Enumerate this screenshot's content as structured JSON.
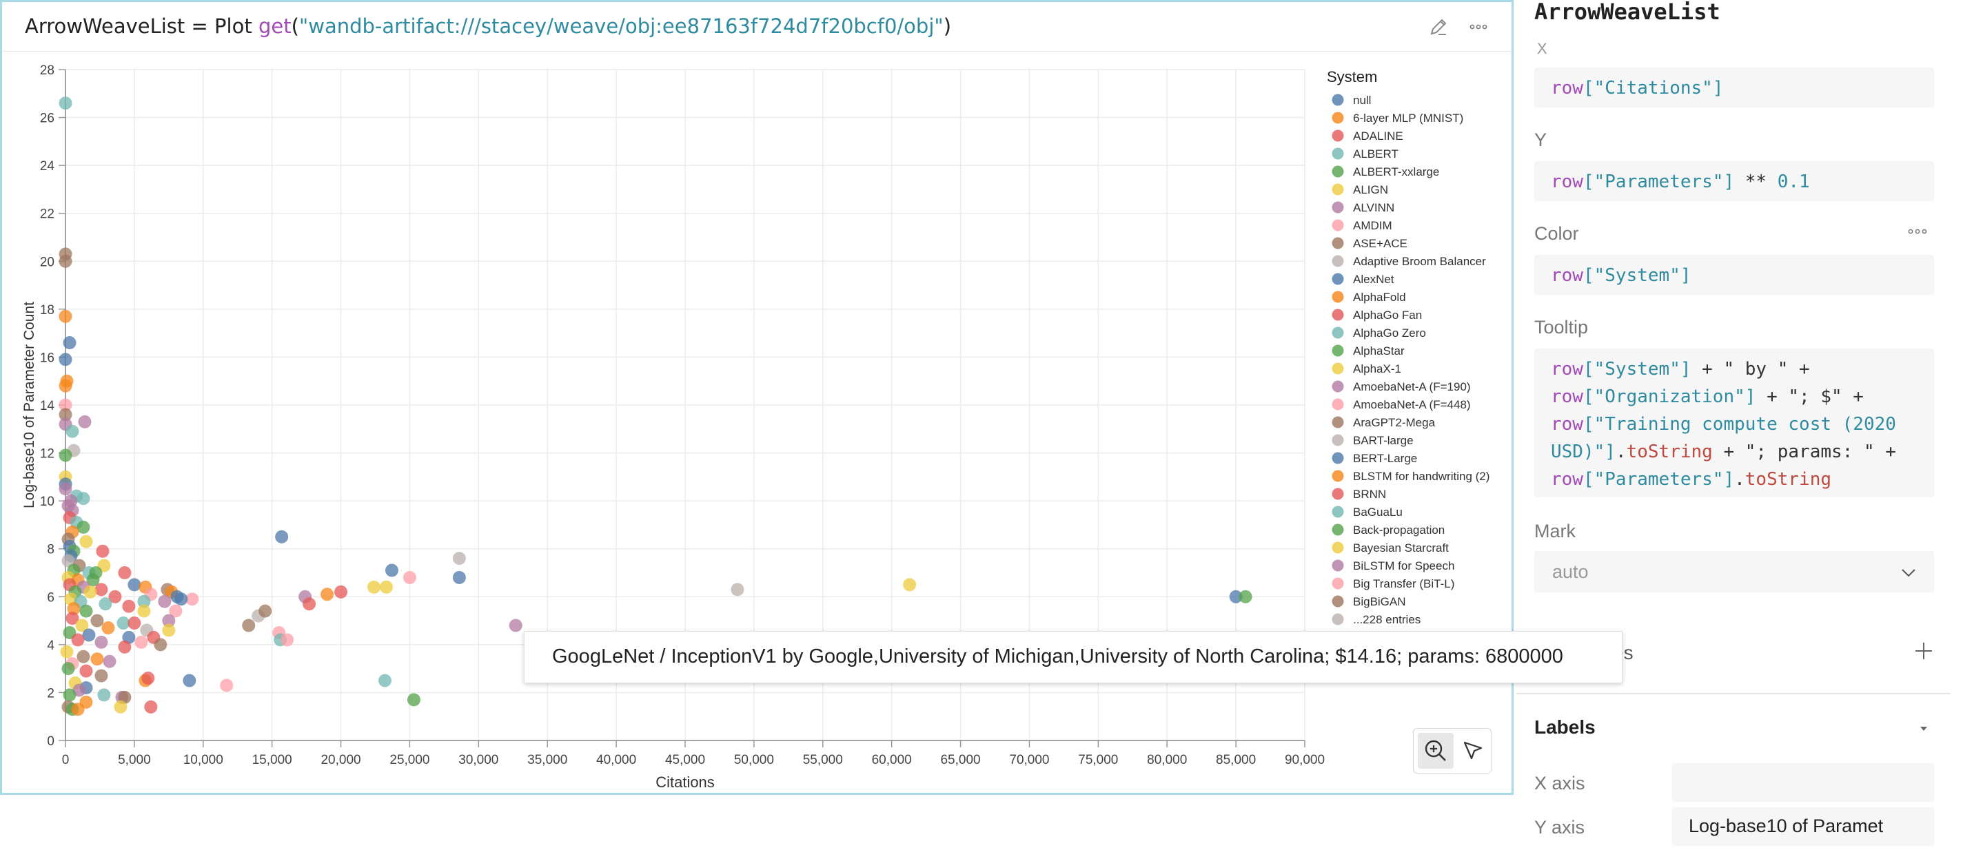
{
  "panel": {
    "var_name": "ArrowWeaveList",
    "equals": "=",
    "op_plot": "Plot",
    "fn_get": "get",
    "artifact_uri": "\"wandb-artifact:///stacey/weave/obj:ee87163f724d7f20bcf0/obj\"",
    "open_paren": "(",
    "close_paren": ")"
  },
  "chart_data": {
    "type": "scatter",
    "xlabel": "Citations",
    "ylabel": "Log-base10 of Parameter Count",
    "xlim": [
      0,
      90000
    ],
    "ylim": [
      0,
      28
    ],
    "x_ticks": [
      "0",
      "5,000",
      "10,000",
      "15,000",
      "20,000",
      "25,000",
      "30,000",
      "35,000",
      "40,000",
      "45,000",
      "50,000",
      "55,000",
      "60,000",
      "65,000",
      "70,000",
      "75,000",
      "80,000",
      "85,000",
      "90,000"
    ],
    "y_ticks": [
      "0",
      "2",
      "4",
      "6",
      "8",
      "10",
      "12",
      "14",
      "16",
      "18",
      "20",
      "22",
      "24",
      "26",
      "28"
    ],
    "grid": true,
    "legend": {
      "title": "System",
      "placement": "right",
      "entries": [
        {
          "name": "null",
          "color": "#4c78a8"
        },
        {
          "name": "6-layer MLP (MNIST)",
          "color": "#f58518"
        },
        {
          "name": "ADALINE",
          "color": "#e45756"
        },
        {
          "name": "ALBERT",
          "color": "#72b7b2"
        },
        {
          "name": "ALBERT-xxlarge",
          "color": "#54a24b"
        },
        {
          "name": "ALIGN",
          "color": "#eeca3b"
        },
        {
          "name": "ALVINN",
          "color": "#b279a2"
        },
        {
          "name": "AMDIM",
          "color": "#ff9da6"
        },
        {
          "name": "ASE+ACE",
          "color": "#9d755d"
        },
        {
          "name": "Adaptive Broom Balancer",
          "color": "#bab0ac"
        },
        {
          "name": "AlexNet",
          "color": "#4c78a8"
        },
        {
          "name": "AlphaFold",
          "color": "#f58518"
        },
        {
          "name": "AlphaGo Fan",
          "color": "#e45756"
        },
        {
          "name": "AlphaGo Zero",
          "color": "#72b7b2"
        },
        {
          "name": "AlphaStar",
          "color": "#54a24b"
        },
        {
          "name": "AlphaX-1",
          "color": "#eeca3b"
        },
        {
          "name": "AmoebaNet-A (F=190)",
          "color": "#b279a2"
        },
        {
          "name": "AmoebaNet-A (F=448)",
          "color": "#ff9da6"
        },
        {
          "name": "AraGPT2-Mega",
          "color": "#9d755d"
        },
        {
          "name": "BART-large",
          "color": "#bab0ac"
        },
        {
          "name": "BERT-Large",
          "color": "#4c78a8"
        },
        {
          "name": "BLSTM for handwriting (2)",
          "color": "#f58518"
        },
        {
          "name": "BRNN",
          "color": "#e45756"
        },
        {
          "name": "BaGuaLu",
          "color": "#72b7b2"
        },
        {
          "name": "Back-propagation",
          "color": "#54a24b"
        },
        {
          "name": "Bayesian Starcraft",
          "color": "#eeca3b"
        },
        {
          "name": "BiLSTM for Speech",
          "color": "#b279a2"
        },
        {
          "name": "Big Transfer (BiT-L)",
          "color": "#ff9da6"
        },
        {
          "name": "BigBiGAN",
          "color": "#9d755d"
        },
        {
          "name": "...228 entries",
          "color": "#bab0ac"
        }
      ]
    },
    "points": [
      {
        "x": 0,
        "y": 26.6,
        "c": 3
      },
      {
        "x": 0,
        "y": 20.3,
        "c": 8
      },
      {
        "x": 0,
        "y": 20.0,
        "c": 8
      },
      {
        "x": 0,
        "y": 17.7,
        "c": 1
      },
      {
        "x": 300,
        "y": 16.6,
        "c": 0
      },
      {
        "x": 0,
        "y": 15.9,
        "c": 0
      },
      {
        "x": 100,
        "y": 15.0,
        "c": 1
      },
      {
        "x": 0,
        "y": 14.8,
        "c": 1
      },
      {
        "x": 0,
        "y": 14.0,
        "c": 7
      },
      {
        "x": 0,
        "y": 13.6,
        "c": 8
      },
      {
        "x": 0,
        "y": 13.2,
        "c": 6
      },
      {
        "x": 1400,
        "y": 13.3,
        "c": 6
      },
      {
        "x": 500,
        "y": 12.9,
        "c": 3
      },
      {
        "x": 600,
        "y": 12.1,
        "c": 9
      },
      {
        "x": 0,
        "y": 11.9,
        "c": 4
      },
      {
        "x": 0,
        "y": 11.0,
        "c": 5
      },
      {
        "x": 0,
        "y": 10.7,
        "c": 0
      },
      {
        "x": 0,
        "y": 10.5,
        "c": 6
      },
      {
        "x": 800,
        "y": 10.2,
        "c": 3
      },
      {
        "x": 1300,
        "y": 10.1,
        "c": 3
      },
      {
        "x": 400,
        "y": 10.0,
        "c": 6
      },
      {
        "x": 200,
        "y": 9.8,
        "c": 6
      },
      {
        "x": 500,
        "y": 9.6,
        "c": 6
      },
      {
        "x": 300,
        "y": 9.3,
        "c": 2
      },
      {
        "x": 800,
        "y": 9.1,
        "c": 3
      },
      {
        "x": 1300,
        "y": 8.9,
        "c": 4
      },
      {
        "x": 500,
        "y": 8.7,
        "c": 1
      },
      {
        "x": 200,
        "y": 8.4,
        "c": 8
      },
      {
        "x": 1500,
        "y": 8.3,
        "c": 5
      },
      {
        "x": 300,
        "y": 8.1,
        "c": 0
      },
      {
        "x": 600,
        "y": 7.9,
        "c": 4
      },
      {
        "x": 2700,
        "y": 7.9,
        "c": 2
      },
      {
        "x": 400,
        "y": 7.7,
        "c": 0
      },
      {
        "x": 200,
        "y": 7.5,
        "c": 9
      },
      {
        "x": 1000,
        "y": 7.3,
        "c": 8
      },
      {
        "x": 2800,
        "y": 7.3,
        "c": 5
      },
      {
        "x": 600,
        "y": 7.1,
        "c": 4
      },
      {
        "x": 1700,
        "y": 7.0,
        "c": 3
      },
      {
        "x": 2200,
        "y": 7.0,
        "c": 4
      },
      {
        "x": 4300,
        "y": 7.0,
        "c": 2
      },
      {
        "x": 200,
        "y": 6.8,
        "c": 5
      },
      {
        "x": 900,
        "y": 6.7,
        "c": 1
      },
      {
        "x": 2000,
        "y": 6.7,
        "c": 4
      },
      {
        "x": 5000,
        "y": 6.5,
        "c": 0
      },
      {
        "x": 5800,
        "y": 6.4,
        "c": 1
      },
      {
        "x": 300,
        "y": 6.5,
        "c": 2
      },
      {
        "x": 1300,
        "y": 6.4,
        "c": 6
      },
      {
        "x": 2600,
        "y": 6.3,
        "c": 2
      },
      {
        "x": 700,
        "y": 6.2,
        "c": 4
      },
      {
        "x": 1800,
        "y": 6.2,
        "c": 5
      },
      {
        "x": 3600,
        "y": 6.0,
        "c": 2
      },
      {
        "x": 6200,
        "y": 6.1,
        "c": 7
      },
      {
        "x": 7400,
        "y": 6.3,
        "c": 8
      },
      {
        "x": 7700,
        "y": 6.2,
        "c": 1
      },
      {
        "x": 8100,
        "y": 6.0,
        "c": 0
      },
      {
        "x": 9200,
        "y": 5.9,
        "c": 7
      },
      {
        "x": 400,
        "y": 5.9,
        "c": 5
      },
      {
        "x": 1100,
        "y": 5.8,
        "c": 3
      },
      {
        "x": 2900,
        "y": 5.7,
        "c": 3
      },
      {
        "x": 5700,
        "y": 5.8,
        "c": 3
      },
      {
        "x": 7200,
        "y": 5.8,
        "c": 6
      },
      {
        "x": 8400,
        "y": 5.9,
        "c": 0
      },
      {
        "x": 600,
        "y": 5.5,
        "c": 1
      },
      {
        "x": 1500,
        "y": 5.4,
        "c": 4
      },
      {
        "x": 4600,
        "y": 5.6,
        "c": 2
      },
      {
        "x": 5700,
        "y": 5.4,
        "c": 5
      },
      {
        "x": 8000,
        "y": 5.4,
        "c": 7
      },
      {
        "x": 500,
        "y": 5.1,
        "c": 2
      },
      {
        "x": 2300,
        "y": 5.0,
        "c": 8
      },
      {
        "x": 4200,
        "y": 4.9,
        "c": 3
      },
      {
        "x": 5000,
        "y": 4.9,
        "c": 2
      },
      {
        "x": 7500,
        "y": 5.0,
        "c": 6
      },
      {
        "x": 1200,
        "y": 4.8,
        "c": 5
      },
      {
        "x": 3100,
        "y": 4.7,
        "c": 1
      },
      {
        "x": 5900,
        "y": 4.6,
        "c": 9
      },
      {
        "x": 7500,
        "y": 4.6,
        "c": 5
      },
      {
        "x": 300,
        "y": 4.5,
        "c": 4
      },
      {
        "x": 1700,
        "y": 4.4,
        "c": 0
      },
      {
        "x": 4600,
        "y": 4.3,
        "c": 0
      },
      {
        "x": 6400,
        "y": 4.3,
        "c": 2
      },
      {
        "x": 900,
        "y": 4.2,
        "c": 2
      },
      {
        "x": 2600,
        "y": 4.1,
        "c": 6
      },
      {
        "x": 5500,
        "y": 4.1,
        "c": 7
      },
      {
        "x": 6900,
        "y": 4.0,
        "c": 8
      },
      {
        "x": 4300,
        "y": 3.9,
        "c": 2
      },
      {
        "x": 100,
        "y": 3.7,
        "c": 5
      },
      {
        "x": 1300,
        "y": 3.5,
        "c": 8
      },
      {
        "x": 3200,
        "y": 3.3,
        "c": 6
      },
      {
        "x": 500,
        "y": 3.2,
        "c": 7
      },
      {
        "x": 2300,
        "y": 3.4,
        "c": 1
      },
      {
        "x": 200,
        "y": 3.0,
        "c": 4
      },
      {
        "x": 1500,
        "y": 2.9,
        "c": 2
      },
      {
        "x": 2600,
        "y": 2.7,
        "c": 8
      },
      {
        "x": 5800,
        "y": 2.5,
        "c": 1
      },
      {
        "x": 6000,
        "y": 2.6,
        "c": 2
      },
      {
        "x": 700,
        "y": 2.4,
        "c": 5
      },
      {
        "x": 1500,
        "y": 2.2,
        "c": 0
      },
      {
        "x": 1000,
        "y": 2.1,
        "c": 6
      },
      {
        "x": 300,
        "y": 1.9,
        "c": 4
      },
      {
        "x": 2800,
        "y": 1.9,
        "c": 3
      },
      {
        "x": 4100,
        "y": 1.8,
        "c": 6
      },
      {
        "x": 4300,
        "y": 1.8,
        "c": 8
      },
      {
        "x": 1500,
        "y": 1.6,
        "c": 1
      },
      {
        "x": 200,
        "y": 1.4,
        "c": 8
      },
      {
        "x": 500,
        "y": 1.3,
        "c": 4
      },
      {
        "x": 900,
        "y": 1.3,
        "c": 1
      },
      {
        "x": 4000,
        "y": 1.4,
        "c": 5
      },
      {
        "x": 6200,
        "y": 1.4,
        "c": 2
      },
      {
        "x": 9000,
        "y": 2.5,
        "c": 0
      },
      {
        "x": 11700,
        "y": 2.3,
        "c": 7
      },
      {
        "x": 13300,
        "y": 4.8,
        "c": 8
      },
      {
        "x": 14000,
        "y": 5.2,
        "c": 9
      },
      {
        "x": 14500,
        "y": 5.4,
        "c": 8
      },
      {
        "x": 15500,
        "y": 4.5,
        "c": 7
      },
      {
        "x": 15600,
        "y": 4.2,
        "c": 3
      },
      {
        "x": 16100,
        "y": 4.2,
        "c": 7
      },
      {
        "x": 15700,
        "y": 8.5,
        "c": 0
      },
      {
        "x": 17400,
        "y": 6.0,
        "c": 6
      },
      {
        "x": 17700,
        "y": 5.7,
        "c": 2
      },
      {
        "x": 19000,
        "y": 6.1,
        "c": 1
      },
      {
        "x": 20000,
        "y": 6.2,
        "c": 2
      },
      {
        "x": 22400,
        "y": 6.4,
        "c": 5
      },
      {
        "x": 23300,
        "y": 6.4,
        "c": 5
      },
      {
        "x": 23700,
        "y": 7.1,
        "c": 0
      },
      {
        "x": 25000,
        "y": 6.8,
        "c": 7
      },
      {
        "x": 23200,
        "y": 2.5,
        "c": 3
      },
      {
        "x": 25300,
        "y": 1.7,
        "c": 4
      },
      {
        "x": 28600,
        "y": 7.6,
        "c": 9
      },
      {
        "x": 28600,
        "y": 6.8,
        "c": 0
      },
      {
        "x": 32700,
        "y": 4.8,
        "c": 6
      },
      {
        "x": 48800,
        "y": 6.3,
        "c": 9
      },
      {
        "x": 61300,
        "y": 6.5,
        "c": 5
      },
      {
        "x": 85000,
        "y": 6.0,
        "c": 0
      },
      {
        "x": 85700,
        "y": 6.0,
        "c": 4
      },
      {
        "x": 85800,
        "y": 4.2,
        "c": 3
      }
    ]
  },
  "tooltip": {
    "text": "GoogLeNet / InceptionV1 by Google,University of Michigan,University of North Carolina; $14.16; params: 6800000"
  },
  "tools": {
    "zoom": "zoom-in",
    "select": "pointer"
  },
  "config": {
    "title": "ArrowWeaveList",
    "x_partial_label": "X",
    "x_expr": {
      "kw": "row",
      "str": "[\"Citations\"]"
    },
    "y_label": "Y",
    "y_expr": {
      "kw": "row",
      "str": "[\"Parameters\"]",
      "op": " ** ",
      "num": "0.1"
    },
    "color_label": "Color",
    "color_expr": {
      "kw": "row",
      "str": "[\"System\"]"
    },
    "tooltip_label": "Tooltip",
    "tooltip_lines": [
      {
        "kw": "row",
        "str": "[\"System\"]",
        "rest": " + \" by \" +"
      },
      {
        "kw": "row",
        "str": "[\"Organization\"]",
        "rest": " + \"; $\" +"
      },
      {
        "kw": "row",
        "str": "[\"Training compute cost (2020",
        "rest": ""
      },
      {
        "kw": "",
        "str": "USD)\"]",
        "rest": ".",
        "mt": "toString",
        "rest2": " + \"; params: \" +"
      },
      {
        "kw": "row",
        "str": "[\"Parameters\"]",
        "rest": ".",
        "mt": "toString",
        "rest2": ""
      }
    ],
    "mark_label": "Mark",
    "mark_value": "auto",
    "series_partial": "es",
    "labels_title": "Labels",
    "x_axis_label": "X axis",
    "x_axis_value": "",
    "y_axis_label": "Y axis",
    "y_axis_value": "Log-base10 of Paramet"
  }
}
